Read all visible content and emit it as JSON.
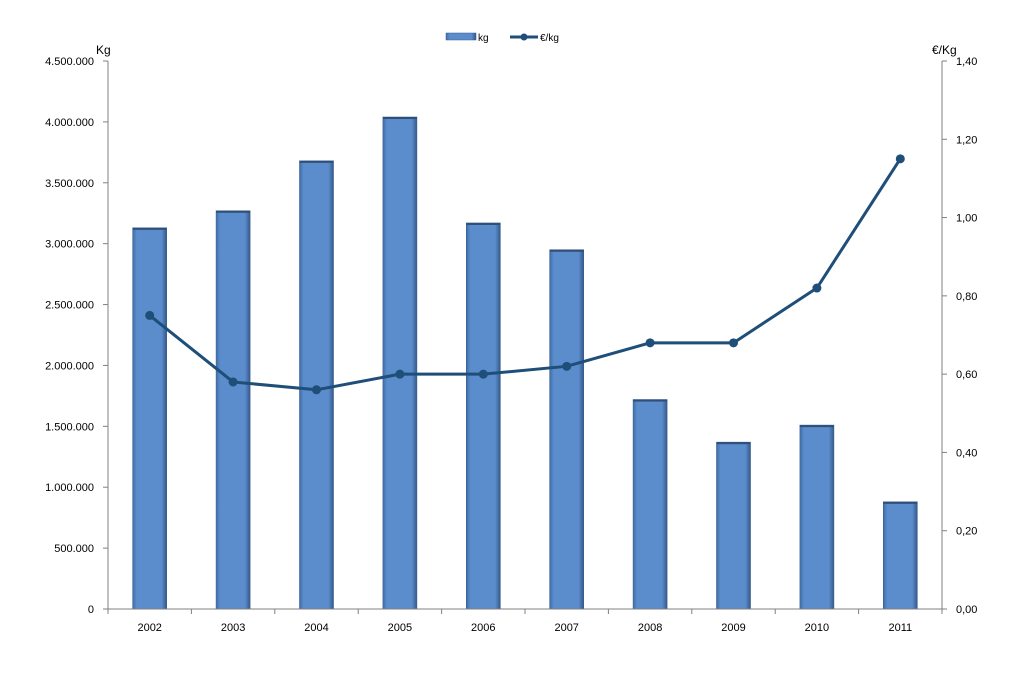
{
  "chart_data": {
    "type": "bar",
    "categories": [
      "2002",
      "2003",
      "2004",
      "2005",
      "2006",
      "2007",
      "2008",
      "2009",
      "2010",
      "2011"
    ],
    "series": [
      {
        "name": "kg",
        "type": "bar",
        "axis": "left",
        "values": [
          3130000,
          3270000,
          3680000,
          4040000,
          3170000,
          2950000,
          1720000,
          1370000,
          1510000,
          880000
        ]
      },
      {
        "name": "€/kg",
        "type": "line",
        "axis": "right",
        "values": [
          0.75,
          0.58,
          0.56,
          0.6,
          0.6,
          0.62,
          0.68,
          0.68,
          0.82,
          1.15
        ]
      }
    ],
    "y_left": {
      "label": "Kg",
      "ylim": [
        0,
        4500000
      ],
      "ticks": [
        "0",
        "500.000",
        "1.000.000",
        "1.500.000",
        "2.000.000",
        "2.500.000",
        "3.000.000",
        "3.500.000",
        "4.000.000",
        "4.500.000"
      ]
    },
    "y_right": {
      "label": "€/Kg",
      "ylim": [
        0,
        1.4
      ],
      "ticks": [
        "0,00",
        "0,20",
        "0,40",
        "0,60",
        "0,80",
        "1,00",
        "1,20",
        "1,40"
      ]
    },
    "legend": {
      "placement": "top-center",
      "items": [
        "kg",
        "€/kg"
      ]
    },
    "grid": false,
    "colors": {
      "bar_fill": "#5b8ccc",
      "bar_edge": "#3a5f8f",
      "line": "#1f4e79",
      "axis": "#808080"
    }
  }
}
